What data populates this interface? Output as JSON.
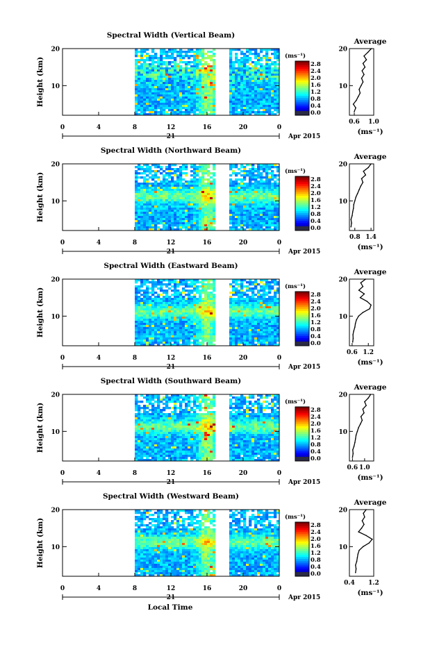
{
  "figure": {
    "xlabel": "Local Time",
    "date_label": "Apr 2015",
    "day_label": "21",
    "average_title": "Average",
    "average_xlabel": "(ms⁻¹)",
    "colorbar_unit": "(ms⁻¹)",
    "ylabel": "Height (km)"
  },
  "chart_data": [
    {
      "type": "heatmap",
      "title": "Spectral Width (Vertical Beam)",
      "xlabel": "",
      "ylabel": "Height (km)",
      "xlim": [
        0,
        24
      ],
      "ylim": [
        2,
        20
      ],
      "xticks": [
        "0",
        "4",
        "8",
        "12",
        "16",
        "20",
        "0"
      ],
      "yticks": [
        "10",
        "20"
      ],
      "colorbar": {
        "unit": "(ms⁻¹)",
        "range": [
          0.0,
          2.8
        ],
        "ticks": [
          "2.8",
          "2.4",
          "2.0",
          "1.6",
          "1.2",
          "0.8",
          "0.4",
          "0.0"
        ]
      },
      "data_gaps_hours": [
        [
          0,
          8
        ],
        [
          17.2,
          18.2
        ]
      ],
      "average": {
        "title": "Average",
        "xlabel": "(ms⁻¹)",
        "xlim": [
          0.5,
          1.0
        ],
        "xticks": [
          "0.6",
          "1.0"
        ],
        "height": [
          3,
          4,
          5,
          6,
          7,
          8,
          9,
          10,
          11,
          12,
          13,
          14,
          15,
          16,
          17,
          18,
          19,
          20
        ],
        "width": [
          0.6,
          0.63,
          0.58,
          0.64,
          0.68,
          0.72,
          0.7,
          0.74,
          0.78,
          0.75,
          0.8,
          0.76,
          0.82,
          0.78,
          0.85,
          0.8,
          0.88,
          0.95
        ]
      }
    },
    {
      "type": "heatmap",
      "title": "Spectral Width (Northward Beam)",
      "xlabel": "",
      "ylabel": "Height (km)",
      "xlim": [
        0,
        24
      ],
      "ylim": [
        2,
        20
      ],
      "xticks": [
        "0",
        "4",
        "8",
        "12",
        "16",
        "20",
        "0"
      ],
      "yticks": [
        "10",
        "20"
      ],
      "colorbar": {
        "unit": "(ms⁻¹)",
        "range": [
          0.0,
          2.8
        ],
        "ticks": [
          "2.8",
          "2.4",
          "2.0",
          "1.6",
          "1.2",
          "0.8",
          "0.4",
          "0.0"
        ]
      },
      "data_gaps_hours": [
        [
          0,
          8
        ],
        [
          17.2,
          18.2
        ]
      ],
      "average": {
        "title": "Average",
        "xlabel": "(ms⁻¹)",
        "xlim": [
          0.6,
          1.5
        ],
        "xticks": [
          "0.8",
          "1.4"
        ],
        "height": [
          3,
          4,
          5,
          6,
          7,
          8,
          9,
          10,
          11,
          12,
          13,
          14,
          15,
          16,
          17,
          18,
          19,
          20
        ],
        "width": [
          0.66,
          0.68,
          0.66,
          0.7,
          0.72,
          0.75,
          0.76,
          0.8,
          0.84,
          0.9,
          0.96,
          1.02,
          1.1,
          1.05,
          1.2,
          1.12,
          1.3,
          1.4
        ]
      }
    },
    {
      "type": "heatmap",
      "title": "Spectral Width (Eastward Beam)",
      "xlabel": "",
      "ylabel": "Height (km)",
      "xlim": [
        0,
        24
      ],
      "ylim": [
        2,
        20
      ],
      "xticks": [
        "0",
        "4",
        "8",
        "12",
        "16",
        "20",
        "0"
      ],
      "yticks": [
        "10",
        "20"
      ],
      "colorbar": {
        "unit": "(ms⁻¹)",
        "range": [
          0.0,
          2.8
        ],
        "ticks": [
          "2.8",
          "2.4",
          "2.0",
          "1.6",
          "1.2",
          "0.8",
          "0.4",
          "0.0"
        ]
      },
      "data_gaps_hours": [
        [
          0,
          8
        ],
        [
          17.2,
          18.2
        ]
      ],
      "average": {
        "title": "Average",
        "xlabel": "(ms⁻¹)",
        "xlim": [
          0.5,
          1.4
        ],
        "xticks": [
          "0.6",
          "1.2"
        ],
        "height": [
          3,
          4,
          5,
          6,
          7,
          8,
          9,
          10,
          11,
          12,
          13,
          14,
          15,
          16,
          17,
          18,
          19,
          20
        ],
        "width": [
          0.62,
          0.64,
          0.63,
          0.66,
          0.7,
          0.72,
          0.76,
          0.84,
          1.0,
          1.25,
          1.3,
          1.15,
          0.9,
          1.05,
          0.85,
          1.0,
          0.92,
          1.1
        ]
      }
    },
    {
      "type": "heatmap",
      "title": "Spectral Width (Southward Beam)",
      "xlabel": "",
      "ylabel": "Height (km)",
      "xlim": [
        0,
        24
      ],
      "ylim": [
        2,
        20
      ],
      "xticks": [
        "0",
        "4",
        "8",
        "12",
        "16",
        "20",
        "0"
      ],
      "yticks": [
        "10",
        "20"
      ],
      "colorbar": {
        "unit": "(ms⁻¹)",
        "range": [
          0.0,
          2.8
        ],
        "ticks": [
          "2.8",
          "2.4",
          "2.0",
          "1.6",
          "1.2",
          "0.8",
          "0.4",
          "0.0"
        ]
      },
      "data_gaps_hours": [
        [
          0,
          8
        ],
        [
          17.2,
          18.2
        ]
      ],
      "average": {
        "title": "Average",
        "xlabel": "(ms⁻¹)",
        "xlim": [
          0.5,
          1.3
        ],
        "xticks": [
          "0.6",
          "1.0"
        ],
        "height": [
          3,
          4,
          5,
          6,
          7,
          8,
          9,
          10,
          11,
          12,
          13,
          14,
          15,
          16,
          17,
          18,
          19,
          20
        ],
        "width": [
          0.6,
          0.62,
          0.61,
          0.65,
          0.68,
          0.7,
          0.72,
          0.76,
          0.8,
          0.86,
          0.92,
          0.88,
          0.98,
          0.94,
          1.05,
          1.0,
          1.12,
          1.2
        ]
      }
    },
    {
      "type": "heatmap",
      "title": "Spectral Width (Westward Beam)",
      "xlabel": "Local Time",
      "ylabel": "Height (km)",
      "xlim": [
        0,
        24
      ],
      "ylim": [
        2,
        20
      ],
      "xticks": [
        "0",
        "4",
        "8",
        "12",
        "16",
        "20",
        "0"
      ],
      "yticks": [
        "10",
        "20"
      ],
      "colorbar": {
        "unit": "(ms⁻¹)",
        "range": [
          0.0,
          2.8
        ],
        "ticks": [
          "2.8",
          "2.4",
          "2.0",
          "1.6",
          "1.2",
          "0.8",
          "0.4",
          "0.0"
        ]
      },
      "data_gaps_hours": [
        [
          0,
          8
        ],
        [
          17.2,
          18.2
        ]
      ],
      "average": {
        "title": "Average",
        "xlabel": "(ms⁻¹)",
        "xlim": [
          0.4,
          1.2
        ],
        "xticks": [
          "0.4",
          "1.2"
        ],
        "height": [
          3,
          4,
          5,
          6,
          7,
          8,
          9,
          10,
          11,
          12,
          13,
          14,
          15,
          16,
          17,
          18,
          19,
          20
        ],
        "width": [
          0.6,
          0.62,
          0.6,
          0.64,
          0.66,
          0.68,
          0.72,
          0.85,
          1.05,
          1.15,
          0.95,
          0.7,
          0.8,
          0.88,
          0.82,
          0.9,
          0.86,
          0.95
        ]
      }
    }
  ]
}
